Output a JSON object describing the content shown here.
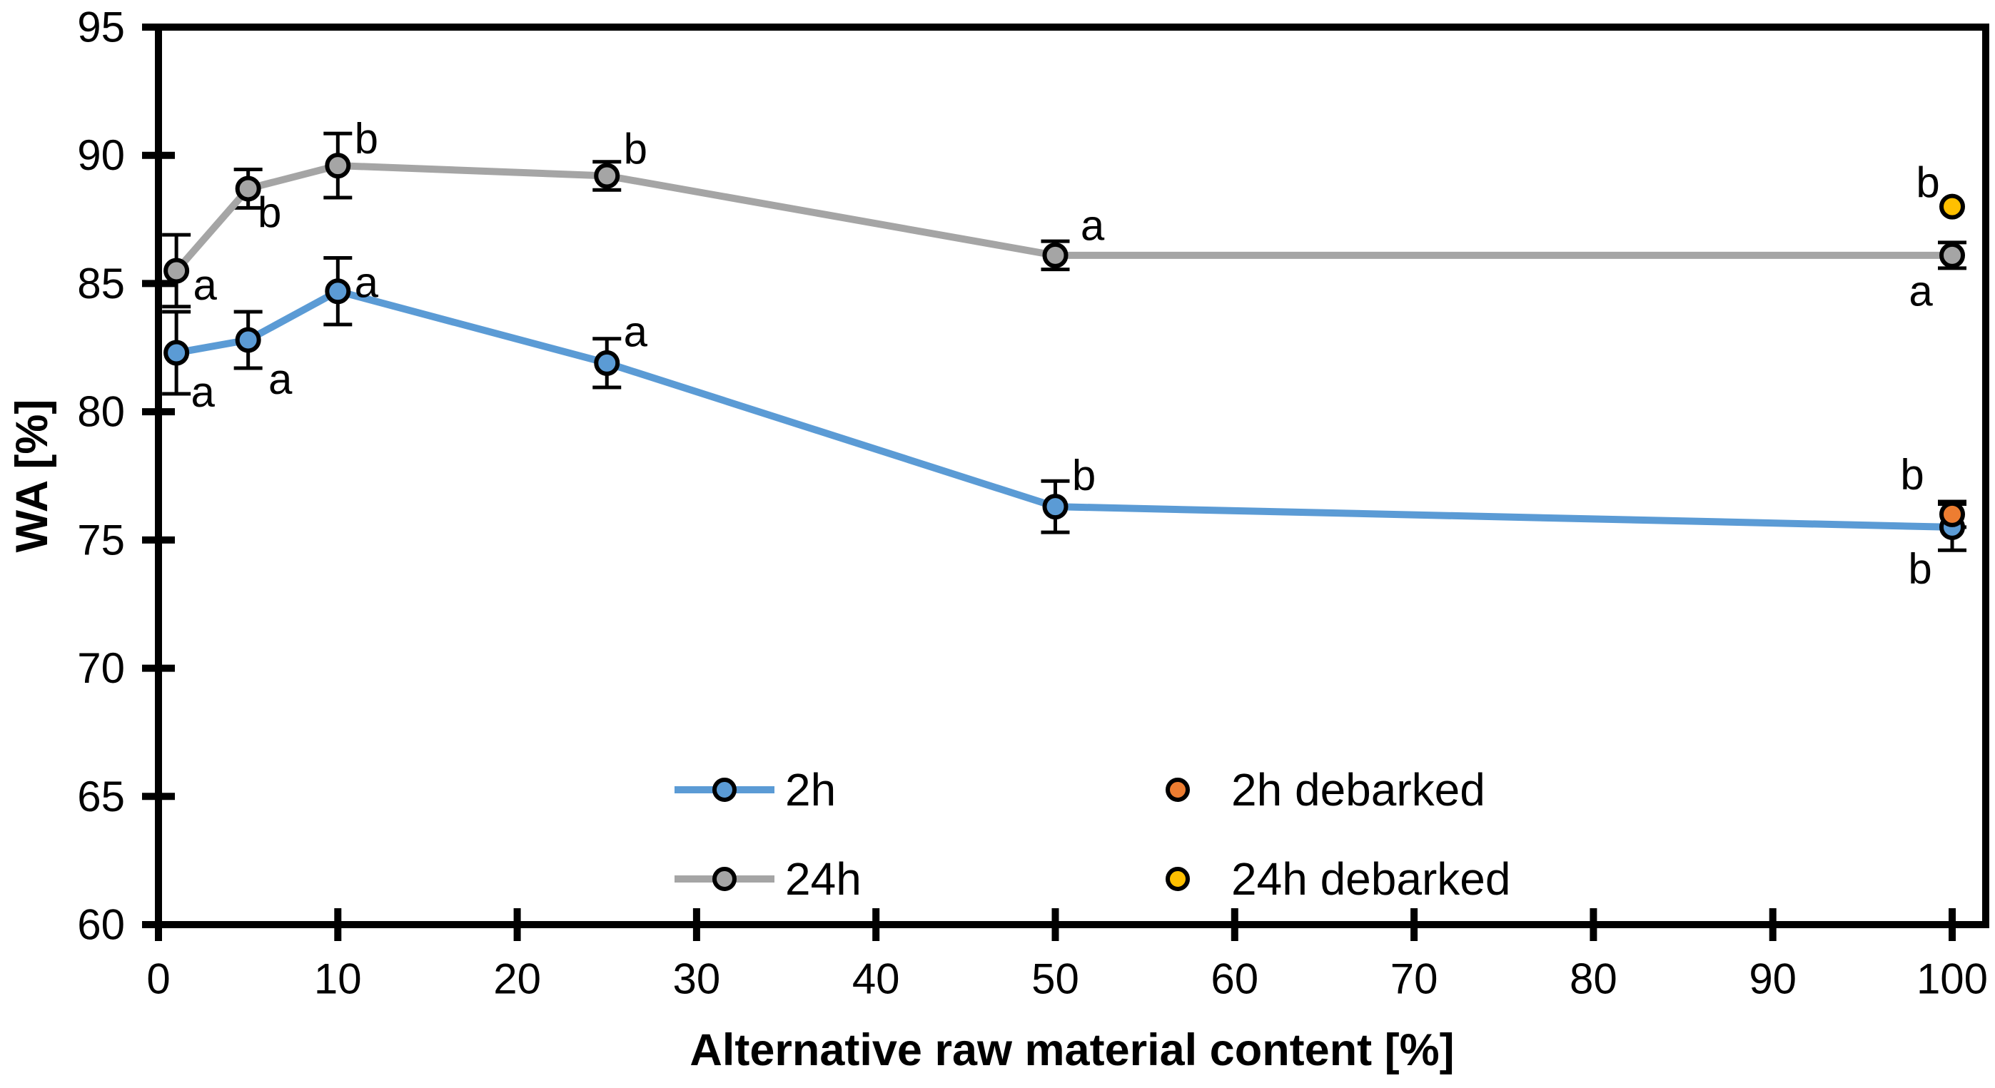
{
  "chart_data": {
    "type": "line",
    "title": "",
    "xlabel": "Alternative raw material content [%]",
    "ylabel": "WA [%]",
    "xlim": [
      0,
      101.9
    ],
    "ylim": [
      60,
      95
    ],
    "x_ticks": [
      0,
      10,
      20,
      30,
      40,
      50,
      60,
      70,
      80,
      90,
      100
    ],
    "y_ticks": [
      60,
      65,
      70,
      75,
      80,
      85,
      90,
      95
    ],
    "grid": false,
    "legend_position": "inside-bottom",
    "x": [
      1,
      5,
      10,
      25,
      50,
      100
    ],
    "series": [
      {
        "name": "2h",
        "color": "#5B9BD5",
        "values": [
          82.3,
          82.8,
          84.7,
          81.9,
          76.3,
          75.5
        ],
        "errors": [
          1.6,
          1.1,
          1.3,
          0.95,
          1.0,
          0.9
        ],
        "labels": [
          "a",
          "a",
          "a",
          "a",
          "b",
          "b"
        ],
        "label_offsets": [
          [
            37,
            55
          ],
          [
            45,
            55
          ],
          [
            40,
            -12
          ],
          [
            40,
            -44
          ],
          [
            40,
            -44
          ],
          [
            -45,
            58
          ]
        ]
      },
      {
        "name": "24h",
        "color": "#A5A5A5",
        "values": [
          85.5,
          88.7,
          89.6,
          89.2,
          86.1,
          86.1
        ],
        "errors": [
          1.4,
          0.75,
          1.25,
          0.55,
          0.55,
          0.5
        ],
        "labels": [
          "a",
          "b",
          "b",
          "b",
          "a",
          "a"
        ],
        "label_offsets": [
          [
            40,
            20
          ],
          [
            30,
            33
          ],
          [
            40,
            -38
          ],
          [
            40,
            -38
          ],
          [
            52,
            -42
          ],
          [
            -44,
            50
          ]
        ]
      }
    ],
    "points": [
      {
        "name": "2h debarked",
        "color": "#ED7D31",
        "x": 100,
        "y": 76.0,
        "error": 0.5,
        "label": "b",
        "label_offset": [
          -56,
          -56
        ]
      },
      {
        "name": "24h debarked",
        "color": "#FFC000",
        "x": 100,
        "y": 88.0,
        "error": 0,
        "label": "b",
        "label_offset": [
          -34,
          -34
        ]
      }
    ],
    "legend": [
      {
        "label": "2h",
        "type": "line-marker",
        "color": "#5B9BD5"
      },
      {
        "label": "24h",
        "type": "line-marker",
        "color": "#A5A5A5"
      },
      {
        "label": "2h debarked",
        "type": "marker",
        "color": "#ED7D31"
      },
      {
        "label": "24h debarked",
        "type": "marker",
        "color": "#FFC000"
      }
    ],
    "colors": {
      "axis": "#000000",
      "error_bar": "#000000",
      "marker_outline": "#000000",
      "text": "#000000",
      "background": "#FFFFFF"
    }
  }
}
